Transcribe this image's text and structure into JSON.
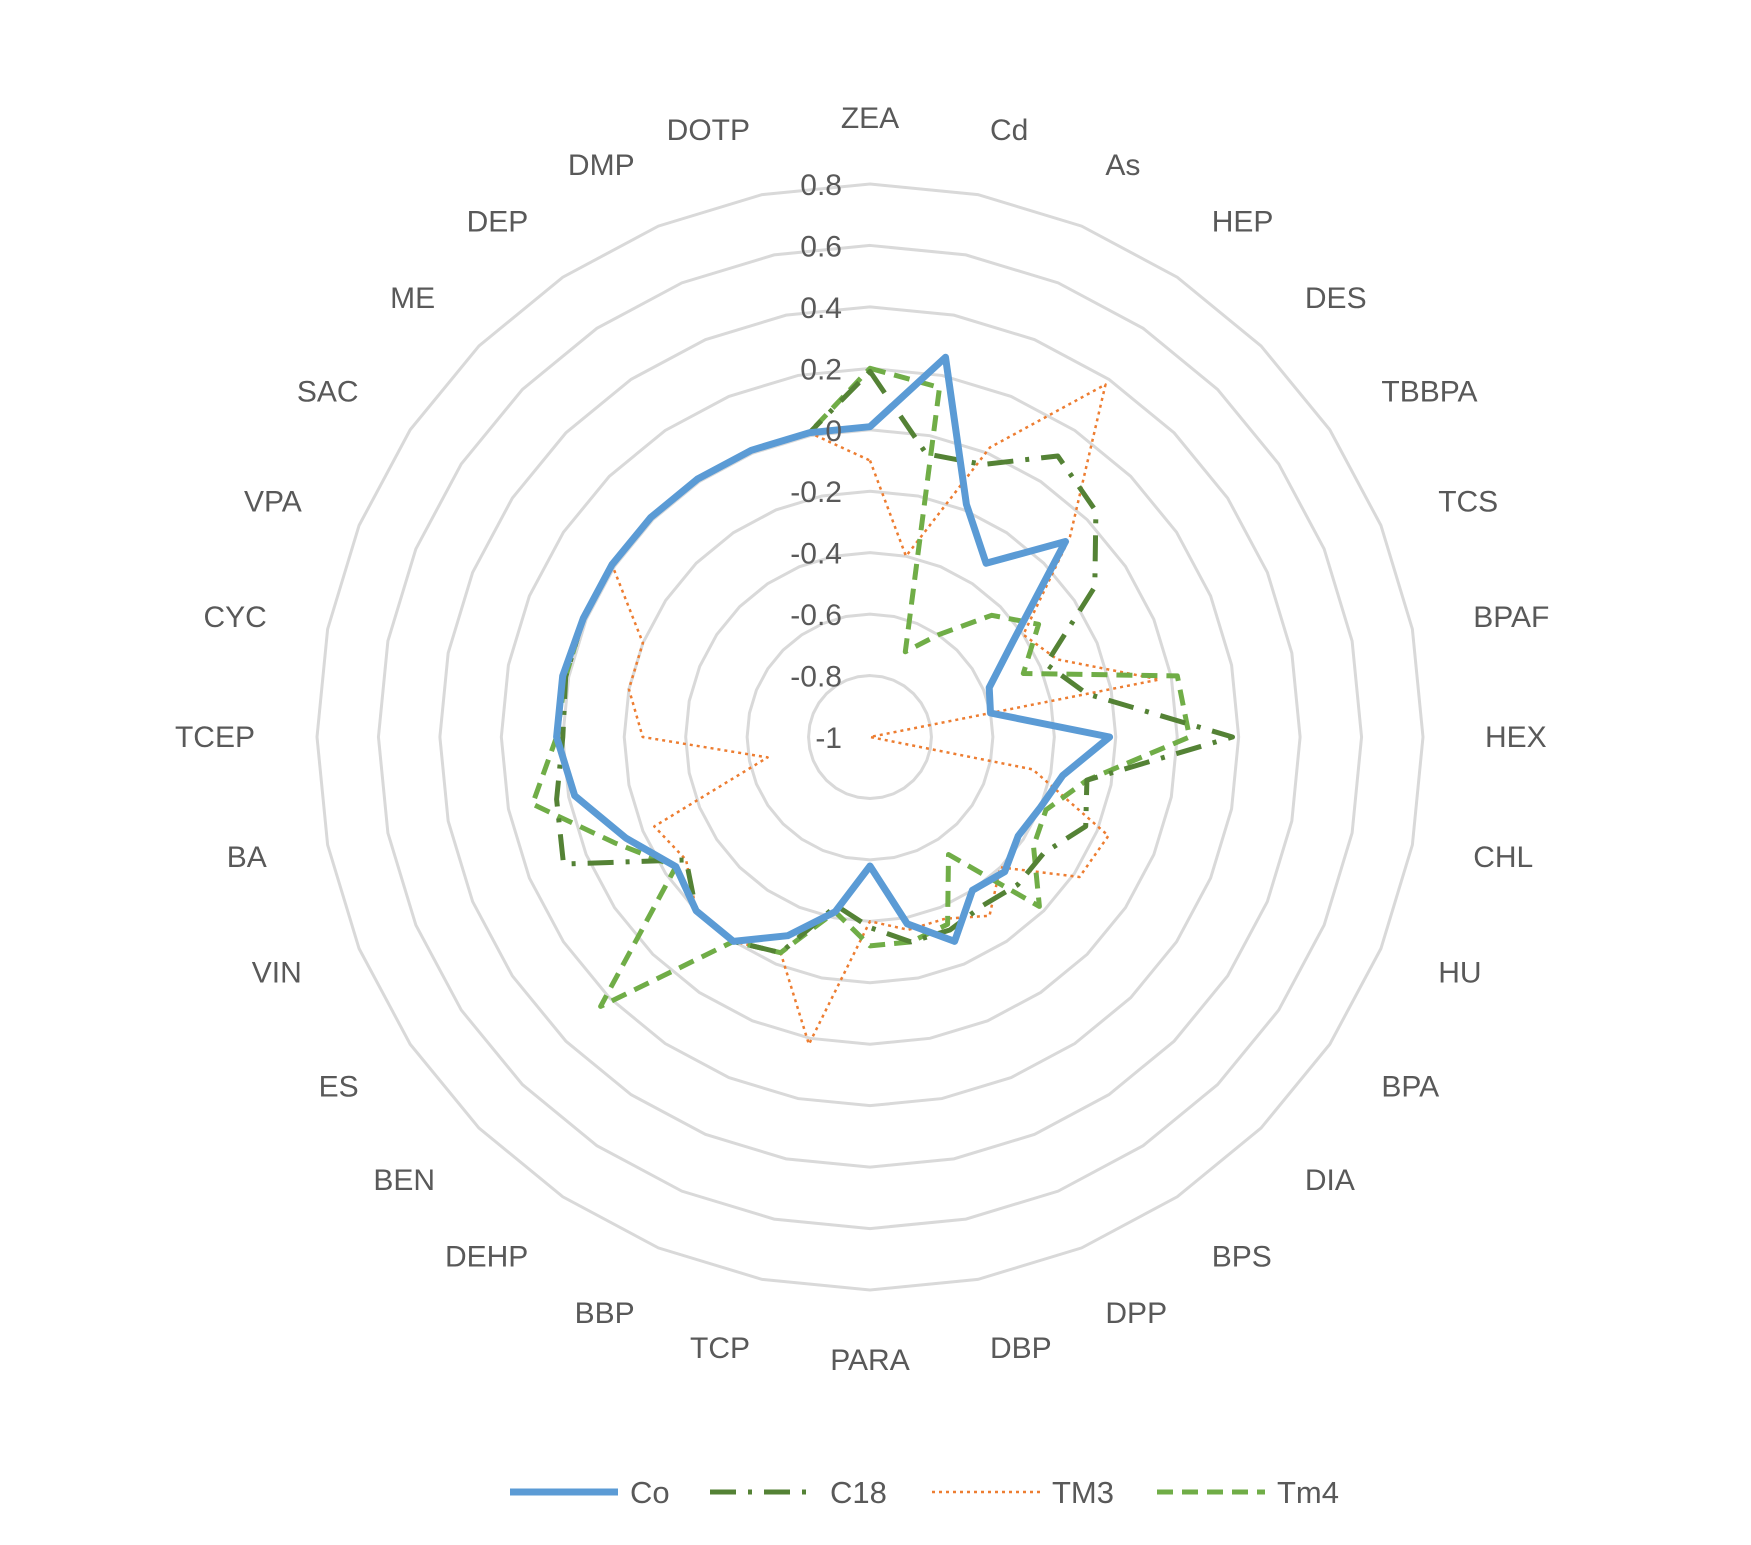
{
  "chart_data": {
    "type": "radar",
    "categories": [
      "ZEA",
      "Cd",
      "As",
      "HEP",
      "DES",
      "TBBPA",
      "TCS",
      "BPAF",
      "HEX",
      "CHL",
      "HU",
      "BPA",
      "DIA",
      "BPS",
      "DPP",
      "DBP",
      "PARA",
      "TCP",
      "BBP",
      "DEHP",
      "BEN",
      "ES",
      "VIN",
      "BA",
      "TCEP",
      "CYC",
      "VPA",
      "SAC",
      "ME",
      "DEP",
      "DMP",
      "DOTP"
    ],
    "ticks": [
      -1,
      -0.8,
      -0.6,
      -0.4,
      -0.2,
      0,
      0.2,
      0.4,
      0.6,
      0.8
    ],
    "tick_labels": [
      "-1",
      "-0.8",
      "-0.6",
      "-0.4",
      "-0.2",
      "0",
      "0.2",
      "0.4",
      "0.6",
      "0.8"
    ],
    "range": [
      -1,
      0.8
    ],
    "grid": true,
    "legend_position": "bottom",
    "series": [
      {
        "name": "Co",
        "color": "#5B9BD5",
        "style": "solid",
        "values": [
          0.01,
          0.26,
          -0.18,
          -0.32,
          -0.1,
          -0.44,
          -0.58,
          -0.6,
          -0.22,
          -0.36,
          -0.4,
          -0.42,
          -0.38,
          -0.4,
          -0.28,
          -0.38,
          -0.58,
          -0.42,
          -0.3,
          -0.2,
          -0.2,
          -0.24,
          -0.14,
          -0.02,
          0.02,
          0.02,
          0.01,
          0.01,
          0.01,
          0.01,
          0.01,
          0.01
        ]
      },
      {
        "name": "C18",
        "color": "#548235",
        "style": "dashdot",
        "values": [
          0.19,
          -0.06,
          -0.04,
          0.1,
          0.04,
          -0.12,
          -0.38,
          -0.28,
          0.18,
          -0.28,
          -0.24,
          -0.32,
          -0.32,
          -0.34,
          -0.32,
          -0.32,
          -0.38,
          -0.44,
          -0.24,
          -0.2,
          -0.2,
          -0.28,
          0.08,
          0.04,
          0.0,
          0.01,
          0.01,
          0.01,
          0.01,
          0.01,
          0.01,
          0.01
        ]
      },
      {
        "name": "TM3",
        "color": "#ED7D31",
        "style": "dotted",
        "values": [
          -0.1,
          -0.4,
          0.02,
          0.38,
          -0.08,
          -0.4,
          -0.34,
          -0.04,
          -1.0,
          -0.46,
          -0.16,
          -0.18,
          -0.4,
          -0.3,
          -0.36,
          -0.36,
          -0.4,
          0.02,
          -0.24,
          -0.2,
          -0.2,
          -0.28,
          -0.24,
          -0.66,
          -0.26,
          -0.2,
          -0.2,
          0.01,
          0.01,
          0.01,
          0.01,
          0.01
        ]
      },
      {
        "name": "Tm4",
        "color": "#70AD47",
        "style": "dashed",
        "values": [
          0.2,
          0.16,
          -0.7,
          -0.6,
          -0.44,
          -0.34,
          -0.46,
          0.02,
          0.04,
          -0.28,
          -0.38,
          -0.36,
          -0.22,
          -0.54,
          -0.34,
          -0.32,
          -0.32,
          -0.42,
          -0.24,
          -0.2,
          0.24,
          -0.24,
          -0.1,
          0.12,
          0.02,
          0.01,
          0.01,
          0.01,
          0.01,
          0.01,
          0.01,
          0.01
        ]
      }
    ]
  }
}
